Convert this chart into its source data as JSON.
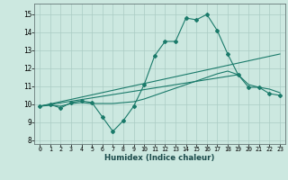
{
  "xlabel": "Humidex (Indice chaleur)",
  "ylabel": "",
  "bg_color": "#cce8e0",
  "line_color": "#1a7a6a",
  "grid_color": "#aaccc4",
  "x_ticks": [
    0,
    1,
    2,
    3,
    4,
    5,
    6,
    7,
    8,
    9,
    10,
    11,
    12,
    13,
    14,
    15,
    16,
    17,
    18,
    19,
    20,
    21,
    22,
    23
  ],
  "y_ticks": [
    8,
    9,
    10,
    11,
    12,
    13,
    14,
    15
  ],
  "xlim": [
    -0.5,
    23.5
  ],
  "ylim": [
    7.8,
    15.6
  ],
  "series1_x": [
    0,
    1,
    2,
    3,
    4,
    5,
    6,
    7,
    8,
    9,
    10,
    11,
    12,
    13,
    14,
    15,
    16,
    17,
    18,
    19,
    20,
    21,
    22,
    23
  ],
  "series1_y": [
    9.9,
    10.0,
    9.8,
    10.1,
    10.2,
    10.1,
    9.3,
    8.5,
    9.1,
    9.9,
    11.1,
    12.7,
    13.5,
    13.5,
    14.8,
    14.7,
    15.0,
    14.1,
    12.8,
    11.65,
    10.95,
    10.95,
    10.6,
    10.5
  ],
  "series2_x": [
    0,
    1,
    2,
    3,
    4,
    5,
    6,
    7,
    8,
    9,
    10,
    11,
    12,
    13,
    14,
    15,
    16,
    17,
    18,
    19,
    20,
    21,
    22,
    23
  ],
  "series2_y": [
    9.9,
    9.95,
    9.9,
    10.05,
    10.1,
    10.05,
    10.05,
    10.05,
    10.1,
    10.15,
    10.3,
    10.5,
    10.7,
    10.9,
    11.1,
    11.3,
    11.5,
    11.7,
    11.85,
    11.65,
    11.1,
    10.95,
    10.85,
    10.65
  ],
  "series3_x": [
    0,
    23
  ],
  "series3_y": [
    9.9,
    12.8
  ],
  "series4_x": [
    0,
    19
  ],
  "series4_y": [
    9.9,
    11.65
  ]
}
